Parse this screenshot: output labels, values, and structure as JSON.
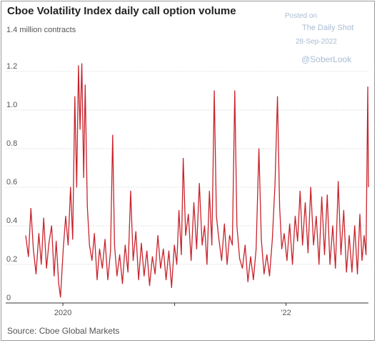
{
  "header": {
    "title": "Cboe Volatility Index daily call option volume",
    "unit_label": "1.4 million contracts"
  },
  "credits": {
    "line1": "Posted on",
    "line2": "The Daily Shot",
    "line3": "28-Sep-2022",
    "line4": "@SoberLook"
  },
  "footer": {
    "source": "Source: Cboe Global Markets"
  },
  "colors": {
    "series": "#c8232c",
    "grid": "#d7d7d7",
    "axis": "#333333"
  },
  "chart_data": {
    "type": "line",
    "title": "Cboe Volatility Index daily call option volume",
    "ylabel": "1.4 million contracts",
    "ylim": [
      0,
      1.4
    ],
    "yticks": [
      0,
      0.2,
      0.4,
      0.6,
      0.8,
      1.0,
      1.2
    ],
    "ytick_labels": [
      "0",
      "0.2",
      "0.4",
      "0.6",
      "0.8",
      "1.0",
      "1.2"
    ],
    "xlim": [
      "2019-09-01",
      "2022-09-28"
    ],
    "xticks": [
      {
        "date": "2020-01-01",
        "label": "2020"
      },
      {
        "date": "2021-01-01",
        "label": ""
      },
      {
        "date": "2022-01-01",
        "label": "'22"
      }
    ],
    "grid": true,
    "legend": "none",
    "series": [
      {
        "points": [
          [
            "2019-09-01",
            0.35
          ],
          [
            "2019-09-10",
            0.24
          ],
          [
            "2019-09-18",
            0.49
          ],
          [
            "2019-09-26",
            0.28
          ],
          [
            "2019-10-05",
            0.15
          ],
          [
            "2019-10-14",
            0.36
          ],
          [
            "2019-10-22",
            0.2
          ],
          [
            "2019-10-30",
            0.44
          ],
          [
            "2019-11-08",
            0.18
          ],
          [
            "2019-11-16",
            0.31
          ],
          [
            "2019-11-25",
            0.4
          ],
          [
            "2019-12-03",
            0.14
          ],
          [
            "2019-12-10",
            0.32
          ],
          [
            "2019-12-18",
            0.1
          ],
          [
            "2019-12-24",
            0.03
          ],
          [
            "2020-01-02",
            0.28
          ],
          [
            "2020-01-10",
            0.45
          ],
          [
            "2020-01-18",
            0.3
          ],
          [
            "2020-01-26",
            0.6
          ],
          [
            "2020-02-02",
            0.33
          ],
          [
            "2020-02-09",
            1.07
          ],
          [
            "2020-02-15",
            0.6
          ],
          [
            "2020-02-21",
            1.23
          ],
          [
            "2020-02-26",
            0.9
          ],
          [
            "2020-03-03",
            1.24
          ],
          [
            "2020-03-09",
            0.65
          ],
          [
            "2020-03-14",
            1.13
          ],
          [
            "2020-03-21",
            0.5
          ],
          [
            "2020-03-28",
            0.3
          ],
          [
            "2020-04-05",
            0.22
          ],
          [
            "2020-04-13",
            0.36
          ],
          [
            "2020-04-22",
            0.12
          ],
          [
            "2020-04-30",
            0.28
          ],
          [
            "2020-05-09",
            0.18
          ],
          [
            "2020-05-18",
            0.33
          ],
          [
            "2020-05-27",
            0.12
          ],
          [
            "2020-06-05",
            0.27
          ],
          [
            "2020-06-12",
            0.87
          ],
          [
            "2020-06-18",
            0.3
          ],
          [
            "2020-06-26",
            0.14
          ],
          [
            "2020-07-05",
            0.25
          ],
          [
            "2020-07-14",
            0.1
          ],
          [
            "2020-07-23",
            0.3
          ],
          [
            "2020-08-01",
            0.16
          ],
          [
            "2020-08-10",
            0.58
          ],
          [
            "2020-08-18",
            0.22
          ],
          [
            "2020-08-27",
            0.37
          ],
          [
            "2020-09-05",
            0.12
          ],
          [
            "2020-09-14",
            0.31
          ],
          [
            "2020-09-23",
            0.14
          ],
          [
            "2020-10-02",
            0.27
          ],
          [
            "2020-10-11",
            0.09
          ],
          [
            "2020-10-20",
            0.24
          ],
          [
            "2020-10-29",
            0.15
          ],
          [
            "2020-11-07",
            0.35
          ],
          [
            "2020-11-16",
            0.18
          ],
          [
            "2020-11-25",
            0.28
          ],
          [
            "2020-12-04",
            0.12
          ],
          [
            "2020-12-13",
            0.27
          ],
          [
            "2020-12-22",
            0.08
          ],
          [
            "2020-12-31",
            0.3
          ],
          [
            "2021-01-08",
            0.2
          ],
          [
            "2021-01-15",
            0.48
          ],
          [
            "2021-01-23",
            0.25
          ],
          [
            "2021-01-29",
            0.75
          ],
          [
            "2021-02-06",
            0.35
          ],
          [
            "2021-02-15",
            0.46
          ],
          [
            "2021-02-24",
            0.22
          ],
          [
            "2021-03-05",
            0.52
          ],
          [
            "2021-03-14",
            0.28
          ],
          [
            "2021-03-23",
            0.62
          ],
          [
            "2021-04-01",
            0.3
          ],
          [
            "2021-04-09",
            0.4
          ],
          [
            "2021-04-17",
            0.2
          ],
          [
            "2021-04-25",
            0.58
          ],
          [
            "2021-05-03",
            0.3
          ],
          [
            "2021-05-11",
            1.1
          ],
          [
            "2021-05-18",
            0.45
          ],
          [
            "2021-05-26",
            0.33
          ],
          [
            "2021-06-04",
            0.22
          ],
          [
            "2021-06-13",
            0.41
          ],
          [
            "2021-06-22",
            0.2
          ],
          [
            "2021-06-30",
            0.35
          ],
          [
            "2021-07-09",
            0.3
          ],
          [
            "2021-07-17",
            1.1
          ],
          [
            "2021-07-24",
            0.4
          ],
          [
            "2021-08-02",
            0.23
          ],
          [
            "2021-08-11",
            0.18
          ],
          [
            "2021-08-20",
            0.3
          ],
          [
            "2021-08-29",
            0.11
          ],
          [
            "2021-09-07",
            0.24
          ],
          [
            "2021-09-16",
            0.12
          ],
          [
            "2021-09-25",
            0.28
          ],
          [
            "2021-10-04",
            0.8
          ],
          [
            "2021-10-12",
            0.33
          ],
          [
            "2021-10-21",
            0.15
          ],
          [
            "2021-10-30",
            0.25
          ],
          [
            "2021-11-08",
            0.14
          ],
          [
            "2021-11-17",
            0.33
          ],
          [
            "2021-11-26",
            0.62
          ],
          [
            "2021-12-04",
            1.07
          ],
          [
            "2021-12-11",
            0.5
          ],
          [
            "2021-12-18",
            0.28
          ],
          [
            "2021-12-26",
            0.36
          ],
          [
            "2022-01-04",
            0.22
          ],
          [
            "2022-01-13",
            0.41
          ],
          [
            "2022-01-22",
            0.2
          ],
          [
            "2022-01-31",
            0.45
          ],
          [
            "2022-02-08",
            0.32
          ],
          [
            "2022-02-16",
            0.58
          ],
          [
            "2022-02-24",
            0.3
          ],
          [
            "2022-03-05",
            0.52
          ],
          [
            "2022-03-14",
            0.26
          ],
          [
            "2022-03-23",
            0.6
          ],
          [
            "2022-04-01",
            0.3
          ],
          [
            "2022-04-10",
            0.45
          ],
          [
            "2022-04-19",
            0.2
          ],
          [
            "2022-04-28",
            0.55
          ],
          [
            "2022-05-07",
            0.25
          ],
          [
            "2022-05-16",
            0.56
          ],
          [
            "2022-05-25",
            0.2
          ],
          [
            "2022-06-03",
            0.4
          ],
          [
            "2022-06-12",
            0.18
          ],
          [
            "2022-06-21",
            0.63
          ],
          [
            "2022-06-30",
            0.25
          ],
          [
            "2022-07-09",
            0.48
          ],
          [
            "2022-07-18",
            0.16
          ],
          [
            "2022-07-27",
            0.35
          ],
          [
            "2022-08-05",
            0.16
          ],
          [
            "2022-08-14",
            0.4
          ],
          [
            "2022-08-23",
            0.15
          ],
          [
            "2022-08-31",
            0.46
          ],
          [
            "2022-09-07",
            0.22
          ],
          [
            "2022-09-14",
            0.35
          ],
          [
            "2022-09-20",
            0.25
          ],
          [
            "2022-09-26",
            1.12
          ],
          [
            "2022-09-28",
            0.6
          ]
        ]
      }
    ]
  }
}
